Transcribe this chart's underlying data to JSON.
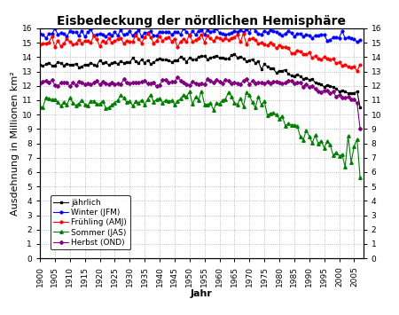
{
  "title": "Eisbedeckung der nördlichen Hemisphäre",
  "xlabel": "Jahr",
  "ylabel": "Ausdehnung in Millionen km²",
  "ylim": [
    0,
    16
  ],
  "xlim": [
    1900,
    2008
  ],
  "xticks": [
    1900,
    1905,
    1910,
    1915,
    1920,
    1925,
    1930,
    1935,
    1940,
    1945,
    1950,
    1955,
    1960,
    1965,
    1970,
    1975,
    1980,
    1985,
    1990,
    1995,
    2000,
    2005
  ],
  "yticks": [
    0,
    1,
    2,
    3,
    4,
    5,
    6,
    7,
    8,
    9,
    10,
    11,
    12,
    13,
    14,
    15,
    16
  ],
  "series": {
    "annual": {
      "label": "jährlich",
      "color": "black",
      "marker": "s",
      "markersize": 2.0,
      "linewidth": 0.8
    },
    "winter": {
      "label": "Winter (JFM)",
      "color": "blue",
      "marker": "o",
      "markersize": 2.0,
      "linewidth": 0.8
    },
    "spring": {
      "label": "Frühling (AMJ)",
      "color": "red",
      "marker": "o",
      "markersize": 2.0,
      "linewidth": 0.8
    },
    "summer": {
      "label": "Sommer (JAS)",
      "color": "green",
      "marker": "^",
      "markersize": 2.5,
      "linewidth": 0.8
    },
    "autumn": {
      "label": "Herbst (OND)",
      "color": "purple",
      "marker": "D",
      "markersize": 2.0,
      "linewidth": 0.8
    }
  },
  "background_color": "white",
  "grid_color": "#aaaaaa",
  "title_fontsize": 10,
  "axis_label_fontsize": 8,
  "tick_fontsize": 6.5,
  "legend_fontsize": 6.5
}
